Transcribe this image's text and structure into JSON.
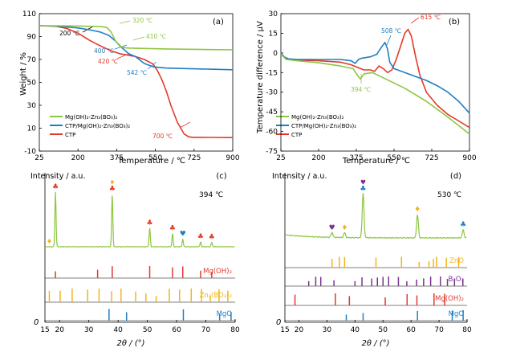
{
  "chart_data": [
    {
      "id": "a",
      "type": "line",
      "panel_label": "(a)",
      "xlabel": "Temperature / ℃",
      "ylabel": "Weight / %",
      "xlim": [
        25,
        900
      ],
      "ylim": [
        -10,
        110
      ],
      "xticks": [
        "25",
        "200",
        "375",
        "550",
        "725",
        "900"
      ],
      "yticks": [
        "-10",
        "10",
        "30",
        "50",
        "70",
        "90",
        "110"
      ],
      "legend_position": "bottom-left",
      "series": [
        {
          "name": "Mg(OH)₂-Zn₃(BO₃)₂",
          "color": "#8dc63f",
          "x": [
            25,
            150,
            250,
            300,
            330,
            350,
            370,
            390,
            410,
            430,
            500,
            600,
            700,
            800,
            900
          ],
          "y": [
            99.5,
            99.3,
            99.0,
            98.8,
            98.0,
            94.0,
            86.0,
            81.5,
            80.3,
            80.0,
            79.6,
            79.2,
            78.9,
            78.6,
            78.4
          ]
        },
        {
          "name": "CTP/Mg(OH)₂-Zn₃(BO₃)₂",
          "color": "#1f7fc4",
          "x": [
            25,
            100,
            200,
            250,
            300,
            340,
            370,
            400,
            430,
            460,
            500,
            542,
            600,
            700,
            800,
            900
          ],
          "y": [
            99.5,
            99.2,
            97.5,
            96.0,
            94.0,
            91.0,
            86.0,
            80.0,
            75.0,
            72.5,
            66.5,
            63.5,
            62.5,
            62.0,
            61.5,
            61.0
          ]
        },
        {
          "name": "CTP",
          "color": "#e3392b",
          "x": [
            25,
            100,
            150,
            200,
            250,
            300,
            350,
            390,
            420,
            460,
            500,
            540,
            560,
            580,
            600,
            620,
            650,
            680,
            700,
            720,
            800,
            900
          ],
          "y": [
            99.5,
            99.0,
            97.0,
            93.0,
            87.0,
            82.0,
            77.5,
            75.0,
            74.0,
            72.5,
            70.0,
            66.0,
            60.0,
            52.0,
            42.0,
            30.0,
            15.0,
            5.0,
            2.5,
            2.0,
            1.9,
            1.8
          ]
        }
      ],
      "annotations": [
        "200 ℃",
        "320 ℃",
        "410 ℃",
        "400 ℃",
        "420 ℃",
        "542 ℃",
        "700 ℃"
      ]
    },
    {
      "id": "b",
      "type": "line",
      "panel_label": "(b)",
      "xlabel": "Temperature / ℃",
      "ylabel": "Temperature difference / μV",
      "xlim": [
        25,
        900
      ],
      "ylim": [
        -75,
        30
      ],
      "xticks": [
        "25",
        "200",
        "375",
        "550",
        "725",
        "900"
      ],
      "yticks": [
        "-75",
        "-60",
        "-45",
        "-30",
        "-15",
        "0",
        "15",
        "30"
      ],
      "legend_position": "bottom-left",
      "series": [
        {
          "name": "Mg(OH)₂-Zn₃(BO₃)₂",
          "color": "#8dc63f",
          "x": [
            25,
            50,
            100,
            200,
            300,
            360,
            380,
            394,
            410,
            450,
            500,
            600,
            700,
            800,
            900
          ],
          "y": [
            -1,
            -5,
            -6,
            -7.5,
            -10,
            -12,
            -17,
            -20,
            -16,
            -15,
            -19,
            -27,
            -37,
            -49,
            -62
          ]
        },
        {
          "name": "CTP/Mg(OH)₂-Zn₃(BO₃)₂",
          "color": "#1f7fc4",
          "x": [
            25,
            40,
            60,
            100,
            200,
            300,
            350,
            370,
            385,
            400,
            440,
            470,
            490,
            508,
            520,
            530,
            550,
            600,
            650,
            700,
            750,
            800,
            850,
            900
          ],
          "y": [
            0,
            -3,
            -4.5,
            -5,
            -5,
            -5,
            -6,
            -8,
            -5,
            -4,
            -3,
            -1,
            4,
            8,
            3,
            -7,
            -12,
            -15,
            -18,
            -21,
            -25,
            -30,
            -37,
            -46
          ]
        },
        {
          "name": "CTP",
          "color": "#e3392b",
          "x": [
            25,
            40,
            60,
            100,
            200,
            300,
            350,
            380,
            410,
            440,
            460,
            480,
            500,
            520,
            540,
            560,
            580,
            600,
            615,
            630,
            650,
            670,
            700,
            750,
            800,
            850,
            900
          ],
          "y": [
            0,
            -3,
            -5,
            -5.5,
            -6,
            -7,
            -9,
            -11,
            -13,
            -13,
            -14,
            -10,
            -12,
            -15,
            -13,
            -5,
            5,
            15,
            18,
            13,
            -3,
            -17,
            -30,
            -40,
            -47,
            -52,
            -57
          ]
        }
      ],
      "annotations": [
        "394 ℃",
        "508 ℃",
        "615 ℃"
      ]
    },
    {
      "id": "c",
      "type": "line",
      "panel_label": "(c)",
      "title": "394 ℃",
      "xlabel": "2θ / (°)",
      "ylabel": "Intensity / a.u.",
      "xlim": [
        15,
        80
      ],
      "xticks": [
        "15",
        "20",
        "30",
        "40",
        "50",
        "60",
        "70",
        "80"
      ],
      "zero_label": "0",
      "pattern_color": "#8dc63f",
      "peaks": [
        {
          "x": 18.6,
          "h": 1.0,
          "marker": "♣",
          "color": "#e3392b"
        },
        {
          "x": 38.0,
          "h": 0.96,
          "marker": "♣",
          "color": "#e3392b",
          "extra_marker": "♦",
          "extra_color": "#f2b51c"
        },
        {
          "x": 50.8,
          "h": 0.34,
          "marker": "♣",
          "color": "#e3392b"
        },
        {
          "x": 58.6,
          "h": 0.24,
          "marker": "♣",
          "color": "#e3392b"
        },
        {
          "x": 62.1,
          "h": 0.14,
          "marker": "♥",
          "color": "#1f7fc4"
        },
        {
          "x": 68.2,
          "h": 0.09,
          "marker": "♣",
          "color": "#e3392b"
        },
        {
          "x": 72.0,
          "h": 0.08,
          "marker": "♣",
          "color": "#e3392b"
        }
      ],
      "side_markers": [
        {
          "x": 16.5,
          "marker": "♦",
          "color": "#f2b51c"
        }
      ],
      "references": [
        {
          "label": "Mg(OH)₂",
          "color": "#e3392b",
          "lines": [
            18.6,
            33.0,
            38.0,
            50.8,
            58.6,
            62.1,
            68.2,
            72.0
          ]
        },
        {
          "label": "Zn₃(BO₃)₂",
          "color": "#f2b51c",
          "lines": [
            16.5,
            20.2,
            24.3,
            29.6,
            33.5,
            37.8,
            41.0,
            46.0,
            49.5,
            53.0,
            57.5,
            61.0,
            65.0,
            68.5,
            71.5,
            74.5,
            77.5
          ]
        },
        {
          "label": "MgO",
          "color": "#1f7fc4",
          "lines": [
            36.9,
            42.9,
            62.3,
            74.7,
            78.6
          ]
        }
      ]
    },
    {
      "id": "d",
      "type": "line",
      "panel_label": "(d)",
      "title": "530 ℃",
      "xlabel": "2θ / (°)",
      "ylabel": "Intensity / a.u.",
      "xlim": [
        15,
        80
      ],
      "xticks": [
        "15",
        "20",
        "30",
        "40",
        "50",
        "60",
        "70",
        "80"
      ],
      "zero_label": "0",
      "pattern_color": "#8dc63f",
      "peaks": [
        {
          "x": 31.8,
          "h": 0.08,
          "marker": "♥",
          "color": "#7b3294"
        },
        {
          "x": 36.3,
          "h": 0.08,
          "marker": "♦",
          "color": "#f2b51c"
        },
        {
          "x": 42.9,
          "h": 0.72,
          "marker": "♣",
          "color": "#1f7fc4",
          "extra_marker": "♥",
          "extra_color": "#7b3294"
        },
        {
          "x": 62.3,
          "h": 0.38,
          "marker": "♦",
          "color": "#f2b51c"
        },
        {
          "x": 78.6,
          "h": 0.13,
          "marker": "♣",
          "color": "#1f7fc4"
        }
      ],
      "references": [
        {
          "label": "ZnO",
          "color": "#f2b51c",
          "lines": [
            31.8,
            34.4,
            36.3,
            47.5,
            56.6,
            62.9,
            66.4,
            68.0,
            69.1,
            72.6,
            77.0
          ]
        },
        {
          "label": "B₂O₃",
          "color": "#7b3294",
          "lines": [
            23.5,
            26.0,
            27.8,
            32.5,
            40.0,
            42.5,
            46.0,
            48.0,
            50.0,
            52.0,
            55.5,
            58.5,
            62.0,
            64.5,
            67.0,
            70.5,
            73.0,
            75.5,
            78.5
          ]
        },
        {
          "label": "Mg(OH)₂",
          "color": "#e3392b",
          "lines": [
            18.6,
            33.0,
            38.0,
            50.8,
            58.6,
            62.1,
            68.2,
            72.0
          ]
        },
        {
          "label": "MgO",
          "color": "#1f7fc4",
          "lines": [
            36.9,
            42.9,
            62.3,
            74.7,
            78.6
          ]
        }
      ]
    }
  ]
}
